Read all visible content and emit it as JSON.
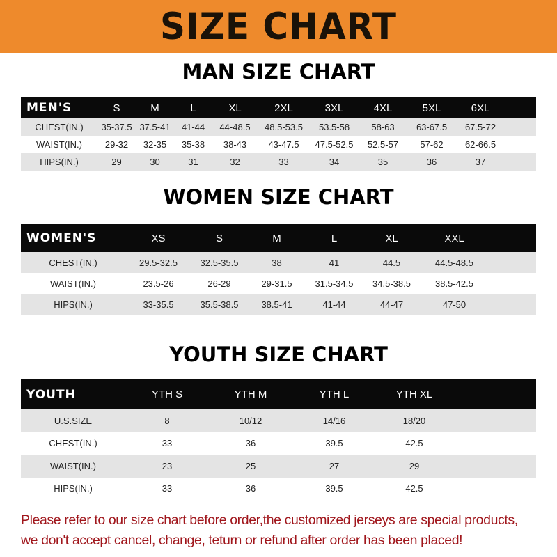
{
  "banner": "SIZE CHART",
  "men": {
    "title": "MAN SIZE CHART",
    "header": [
      "MEN'S",
      "S",
      "M",
      "L",
      "XL",
      "2XL",
      "3XL",
      "4XL",
      "5XL",
      "6XL"
    ],
    "rows": [
      [
        "CHEST(IN.)",
        "35-37.5",
        "37.5-41",
        "41-44",
        "44-48.5",
        "48.5-53.5",
        "53.5-58",
        "58-63",
        "63-67.5",
        "67.5-72"
      ],
      [
        "WAIST(IN.)",
        "29-32",
        "32-35",
        "35-38",
        "38-43",
        "43-47.5",
        "47.5-52.5",
        "52.5-57",
        "57-62",
        "62-66.5"
      ],
      [
        "HIPS(IN.)",
        "29",
        "30",
        "31",
        "32",
        "33",
        "34",
        "35",
        "36",
        "37"
      ]
    ]
  },
  "women": {
    "title": "WOMEN SIZE CHART",
    "header": [
      "WOMEN'S",
      "XS",
      "S",
      "M",
      "L",
      "XL",
      "XXL"
    ],
    "rows": [
      [
        "CHEST(IN.)",
        "29.5-32.5",
        "32.5-35.5",
        "38",
        "41",
        "44.5",
        "44.5-48.5"
      ],
      [
        "WAIST(IN.)",
        "23.5-26",
        "26-29",
        "29-31.5",
        "31.5-34.5",
        "34.5-38.5",
        "38.5-42.5"
      ],
      [
        "HIPS(IN.)",
        "33-35.5",
        "35.5-38.5",
        "38.5-41",
        "41-44",
        "44-47",
        "47-50"
      ]
    ]
  },
  "youth": {
    "title": "YOUTH SIZE CHART",
    "header": [
      "YOUTH",
      "YTH S",
      "YTH M",
      "YTH L",
      "YTH XL"
    ],
    "rows": [
      [
        "U.S.SIZE",
        "8",
        "10/12",
        "14/16",
        "18/20"
      ],
      [
        "CHEST(IN.)",
        "33",
        "36",
        "39.5",
        "42.5"
      ],
      [
        "WAIST(IN.)",
        "23",
        "25",
        "27",
        "29"
      ],
      [
        "HIPS(IN.)",
        "33",
        "36",
        "39.5",
        "42.5"
      ]
    ]
  },
  "note": [
    "Please refer to our size chart before order,the customized jerseys are special products,",
    "we don't accept cancel, change, teturn or refund after order has been placed!"
  ]
}
